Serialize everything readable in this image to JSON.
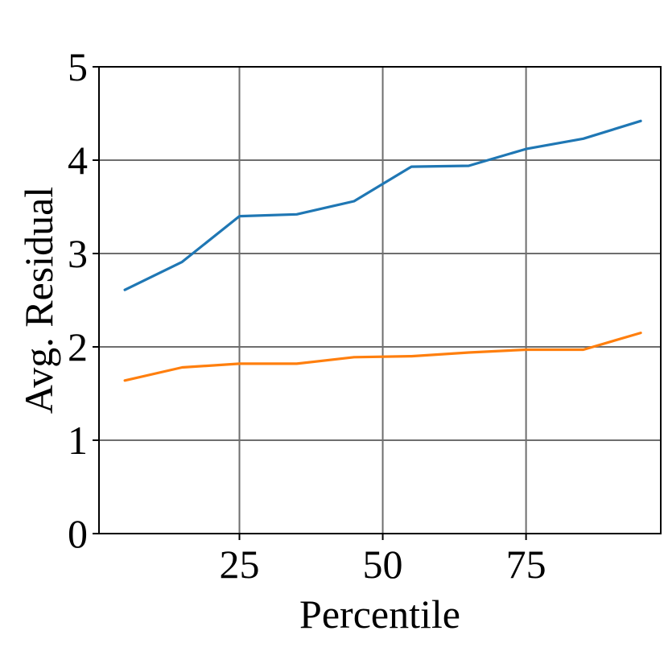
{
  "chart_data": {
    "type": "line",
    "title": "",
    "xlabel": "Percentile",
    "ylabel": "Avg. Residual",
    "xlim": [
      0.5,
      98.5
    ],
    "ylim": [
      0,
      5
    ],
    "xticks": [
      25,
      50,
      75
    ],
    "yticks": [
      0,
      1,
      2,
      3,
      4,
      5
    ],
    "grid": true,
    "legend": "none",
    "x": [
      5,
      15,
      25,
      35,
      45,
      55,
      65,
      75,
      85,
      95
    ],
    "series": [
      {
        "color": "#1f77b4",
        "values": [
          2.61,
          2.91,
          3.4,
          3.42,
          3.56,
          3.93,
          3.94,
          4.12,
          4.23,
          4.42
        ]
      },
      {
        "color": "#ff7f0e",
        "values": [
          1.64,
          1.78,
          1.82,
          1.82,
          1.89,
          1.9,
          1.94,
          1.97,
          1.97,
          2.15
        ]
      }
    ]
  }
}
